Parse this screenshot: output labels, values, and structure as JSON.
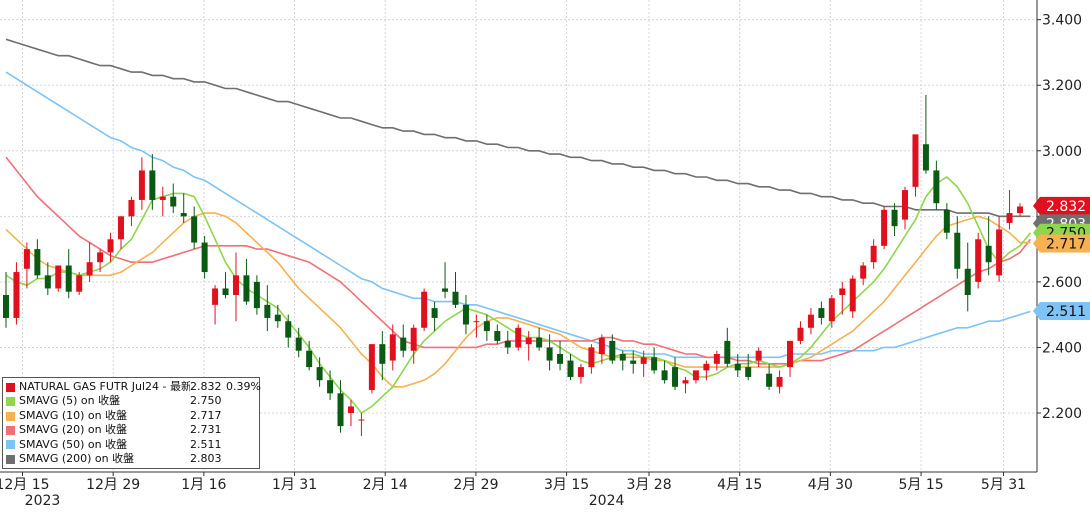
{
  "chart_data": {
    "type": "candlestick",
    "instrument": "NATURAL GAS FUTR Jul24",
    "y_axis": {
      "ticks": [
        "2.200",
        "2.400",
        "2.600",
        "2.800",
        "3.000",
        "3.200",
        "3.400"
      ],
      "ylim": [
        2.02,
        3.46
      ]
    },
    "x_axis": {
      "ticks": [
        "12月 15",
        "12月 29",
        "1月 16",
        "1月 31",
        "2月 14",
        "2月 29",
        "3月 15",
        "3月 28",
        "4月 15",
        "4月 30",
        "5月 15",
        "5月 31"
      ],
      "years": [
        "2023",
        "2024"
      ]
    },
    "candles": [
      [
        2.56,
        2.63,
        2.46,
        2.49
      ],
      [
        2.49,
        2.66,
        2.47,
        2.63
      ],
      [
        2.64,
        2.72,
        2.58,
        2.7
      ],
      [
        2.7,
        2.73,
        2.61,
        2.62
      ],
      [
        2.62,
        2.66,
        2.56,
        2.58
      ],
      [
        2.58,
        2.65,
        2.57,
        2.65
      ],
      [
        2.65,
        2.7,
        2.55,
        2.57
      ],
      [
        2.57,
        2.63,
        2.56,
        2.62
      ],
      [
        2.62,
        2.72,
        2.6,
        2.66
      ],
      [
        2.66,
        2.7,
        2.63,
        2.69
      ],
      [
        2.69,
        2.75,
        2.66,
        2.73
      ],
      [
        2.73,
        2.8,
        2.7,
        2.8
      ],
      [
        2.8,
        2.86,
        2.77,
        2.85
      ],
      [
        2.85,
        2.98,
        2.82,
        2.94
      ],
      [
        2.94,
        2.99,
        2.82,
        2.85
      ],
      [
        2.85,
        2.89,
        2.8,
        2.86
      ],
      [
        2.86,
        2.9,
        2.81,
        2.83
      ],
      [
        2.81,
        2.87,
        2.78,
        2.8
      ],
      [
        2.8,
        2.83,
        2.7,
        2.72
      ],
      [
        2.72,
        2.74,
        2.61,
        2.63
      ],
      [
        2.53,
        2.59,
        2.47,
        2.58
      ],
      [
        2.58,
        2.63,
        2.55,
        2.56
      ],
      [
        2.56,
        2.69,
        2.48,
        2.62
      ],
      [
        2.62,
        2.67,
        2.53,
        2.54
      ],
      [
        2.6,
        2.62,
        2.5,
        2.52
      ],
      [
        2.53,
        2.59,
        2.45,
        2.49
      ],
      [
        2.5,
        2.53,
        2.46,
        2.48
      ],
      [
        2.48,
        2.5,
        2.4,
        2.43
      ],
      [
        2.43,
        2.46,
        2.37,
        2.39
      ],
      [
        2.39,
        2.42,
        2.33,
        2.34
      ],
      [
        2.34,
        2.37,
        2.28,
        2.3
      ],
      [
        2.3,
        2.33,
        2.24,
        2.26
      ],
      [
        2.26,
        2.3,
        2.14,
        2.16
      ],
      [
        2.2,
        2.24,
        2.16,
        2.22
      ],
      [
        2.18,
        2.2,
        2.13,
        2.18
      ],
      [
        2.27,
        2.41,
        2.26,
        2.41
      ],
      [
        2.41,
        2.45,
        2.3,
        2.35
      ],
      [
        2.36,
        2.47,
        2.33,
        2.44
      ],
      [
        2.43,
        2.47,
        2.37,
        2.39
      ],
      [
        2.39,
        2.47,
        2.35,
        2.46
      ],
      [
        2.46,
        2.58,
        2.45,
        2.57
      ],
      [
        2.52,
        2.54,
        2.45,
        2.49
      ],
      [
        2.58,
        2.66,
        2.55,
        2.57
      ],
      [
        2.57,
        2.63,
        2.52,
        2.53
      ],
      [
        2.53,
        2.56,
        2.44,
        2.47
      ],
      [
        2.48,
        2.5,
        2.43,
        2.48
      ],
      [
        2.48,
        2.5,
        2.42,
        2.45
      ],
      [
        2.45,
        2.47,
        2.41,
        2.42
      ],
      [
        2.42,
        2.45,
        2.38,
        2.4
      ],
      [
        2.4,
        2.47,
        2.39,
        2.46
      ],
      [
        2.41,
        2.45,
        2.36,
        2.43
      ],
      [
        2.43,
        2.46,
        2.39,
        2.4
      ],
      [
        2.4,
        2.44,
        2.33,
        2.36
      ],
      [
        2.38,
        2.42,
        2.33,
        2.35
      ],
      [
        2.36,
        2.38,
        2.3,
        2.31
      ],
      [
        2.31,
        2.35,
        2.29,
        2.34
      ],
      [
        2.34,
        2.41,
        2.32,
        2.4
      ],
      [
        2.38,
        2.44,
        2.35,
        2.43
      ],
      [
        2.42,
        2.44,
        2.35,
        2.36
      ],
      [
        2.38,
        2.39,
        2.33,
        2.36
      ],
      [
        2.36,
        2.39,
        2.32,
        2.35
      ],
      [
        2.35,
        2.39,
        2.31,
        2.37
      ],
      [
        2.37,
        2.4,
        2.32,
        2.33
      ],
      [
        2.33,
        2.36,
        2.29,
        2.3
      ],
      [
        2.34,
        2.37,
        2.27,
        2.28
      ],
      [
        2.29,
        2.31,
        2.26,
        2.3
      ],
      [
        2.3,
        2.33,
        2.29,
        2.33
      ],
      [
        2.33,
        2.36,
        2.3,
        2.35
      ],
      [
        2.35,
        2.39,
        2.33,
        2.38
      ],
      [
        2.42,
        2.46,
        2.34,
        2.35
      ],
      [
        2.35,
        2.38,
        2.31,
        2.33
      ],
      [
        2.34,
        2.38,
        2.3,
        2.31
      ],
      [
        2.36,
        2.4,
        2.34,
        2.39
      ],
      [
        2.32,
        2.35,
        2.27,
        2.28
      ],
      [
        2.28,
        2.33,
        2.26,
        2.31
      ],
      [
        2.34,
        2.42,
        2.31,
        2.42
      ],
      [
        2.42,
        2.48,
        2.41,
        2.46
      ],
      [
        2.46,
        2.52,
        2.44,
        2.5
      ],
      [
        2.52,
        2.54,
        2.47,
        2.49
      ],
      [
        2.48,
        2.56,
        2.46,
        2.55
      ],
      [
        2.56,
        2.6,
        2.5,
        2.58
      ],
      [
        2.51,
        2.62,
        2.49,
        2.61
      ],
      [
        2.61,
        2.66,
        2.59,
        2.65
      ],
      [
        2.66,
        2.73,
        2.64,
        2.71
      ],
      [
        2.71,
        2.83,
        2.7,
        2.82
      ],
      [
        2.82,
        2.84,
        2.74,
        2.77
      ],
      [
        2.79,
        2.89,
        2.76,
        2.88
      ],
      [
        2.89,
        3.05,
        2.86,
        3.05
      ],
      [
        3.02,
        3.17,
        2.93,
        2.94
      ],
      [
        2.94,
        2.97,
        2.82,
        2.84
      ],
      [
        2.82,
        2.84,
        2.73,
        2.75
      ],
      [
        2.75,
        2.8,
        2.61,
        2.64
      ],
      [
        2.64,
        2.72,
        2.51,
        2.56
      ],
      [
        2.6,
        2.75,
        2.58,
        2.73
      ],
      [
        2.71,
        2.8,
        2.62,
        2.66
      ],
      [
        2.62,
        2.8,
        2.6,
        2.76
      ],
      [
        2.78,
        2.88,
        2.76,
        2.81
      ],
      [
        2.81,
        2.84,
        2.8,
        2.83
      ]
    ],
    "series": [
      {
        "name": "SMAVG (5)",
        "color": "#8ed64c",
        "values": [
          2.62,
          2.6,
          2.59,
          2.61,
          2.61,
          2.63,
          2.63,
          2.62,
          2.63,
          2.64,
          2.66,
          2.7,
          2.73,
          2.79,
          2.85,
          2.86,
          2.87,
          2.87,
          2.86,
          2.8,
          2.73,
          2.66,
          2.61,
          2.58,
          2.56,
          2.54,
          2.52,
          2.48,
          2.44,
          2.4,
          2.35,
          2.31,
          2.27,
          2.24,
          2.2,
          2.22,
          2.25,
          2.28,
          2.33,
          2.38,
          2.42,
          2.45,
          2.48,
          2.5,
          2.52,
          2.51,
          2.5,
          2.48,
          2.46,
          2.44,
          2.43,
          2.43,
          2.42,
          2.4,
          2.38,
          2.36,
          2.35,
          2.36,
          2.37,
          2.38,
          2.38,
          2.37,
          2.37,
          2.36,
          2.34,
          2.33,
          2.31,
          2.31,
          2.32,
          2.34,
          2.35,
          2.35,
          2.36,
          2.35,
          2.34,
          2.35,
          2.37,
          2.4,
          2.44,
          2.48,
          2.51,
          2.54,
          2.57,
          2.6,
          2.64,
          2.69,
          2.74,
          2.79,
          2.86,
          2.9,
          2.92,
          2.89,
          2.84,
          2.77,
          2.7,
          2.66,
          2.69,
          2.71,
          2.75
        ]
      },
      {
        "name": "SMAVG (10)",
        "color": "#f7b151",
        "values": [
          2.76,
          2.73,
          2.7,
          2.67,
          2.65,
          2.64,
          2.63,
          2.62,
          2.62,
          2.62,
          2.62,
          2.63,
          2.65,
          2.67,
          2.69,
          2.72,
          2.75,
          2.78,
          2.8,
          2.81,
          2.81,
          2.8,
          2.78,
          2.75,
          2.72,
          2.69,
          2.66,
          2.62,
          2.58,
          2.55,
          2.52,
          2.49,
          2.46,
          2.42,
          2.38,
          2.35,
          2.31,
          2.28,
          2.28,
          2.29,
          2.3,
          2.32,
          2.35,
          2.39,
          2.43,
          2.46,
          2.48,
          2.49,
          2.49,
          2.48,
          2.47,
          2.46,
          2.45,
          2.44,
          2.42,
          2.4,
          2.39,
          2.38,
          2.37,
          2.37,
          2.37,
          2.37,
          2.36,
          2.36,
          2.35,
          2.34,
          2.34,
          2.34,
          2.34,
          2.34,
          2.34,
          2.34,
          2.34,
          2.34,
          2.34,
          2.35,
          2.36,
          2.37,
          2.39,
          2.41,
          2.43,
          2.45,
          2.48,
          2.51,
          2.54,
          2.58,
          2.62,
          2.66,
          2.7,
          2.74,
          2.77,
          2.78,
          2.79,
          2.8,
          2.79,
          2.77,
          2.75,
          2.72,
          2.72
        ]
      },
      {
        "name": "SMAVG (20)",
        "color": "#f07079",
        "values": [
          2.98,
          2.94,
          2.9,
          2.86,
          2.83,
          2.8,
          2.77,
          2.74,
          2.72,
          2.7,
          2.68,
          2.67,
          2.66,
          2.66,
          2.66,
          2.67,
          2.68,
          2.69,
          2.7,
          2.71,
          2.71,
          2.71,
          2.71,
          2.71,
          2.7,
          2.7,
          2.69,
          2.68,
          2.67,
          2.66,
          2.64,
          2.62,
          2.6,
          2.57,
          2.54,
          2.51,
          2.48,
          2.45,
          2.42,
          2.41,
          2.4,
          2.4,
          2.4,
          2.4,
          2.4,
          2.4,
          2.41,
          2.41,
          2.42,
          2.42,
          2.42,
          2.42,
          2.42,
          2.42,
          2.42,
          2.42,
          2.42,
          2.43,
          2.43,
          2.42,
          2.42,
          2.41,
          2.41,
          2.4,
          2.39,
          2.38,
          2.38,
          2.37,
          2.37,
          2.37,
          2.36,
          2.36,
          2.35,
          2.35,
          2.35,
          2.35,
          2.36,
          2.36,
          2.36,
          2.37,
          2.38,
          2.39,
          2.41,
          2.43,
          2.45,
          2.47,
          2.49,
          2.51,
          2.53,
          2.55,
          2.57,
          2.59,
          2.61,
          2.63,
          2.64,
          2.66,
          2.67,
          2.69,
          2.73
        ]
      },
      {
        "name": "SMAVG (50)",
        "color": "#7ec3f5",
        "values": [
          3.24,
          3.22,
          3.2,
          3.18,
          3.16,
          3.14,
          3.12,
          3.1,
          3.08,
          3.06,
          3.04,
          3.03,
          3.01,
          3.0,
          2.98,
          2.97,
          2.95,
          2.94,
          2.92,
          2.91,
          2.89,
          2.87,
          2.85,
          2.83,
          2.81,
          2.79,
          2.77,
          2.75,
          2.73,
          2.71,
          2.69,
          2.67,
          2.65,
          2.63,
          2.61,
          2.6,
          2.58,
          2.57,
          2.56,
          2.55,
          2.55,
          2.54,
          2.54,
          2.54,
          2.53,
          2.53,
          2.52,
          2.51,
          2.5,
          2.49,
          2.48,
          2.47,
          2.46,
          2.45,
          2.44,
          2.43,
          2.42,
          2.41,
          2.4,
          2.39,
          2.39,
          2.38,
          2.38,
          2.38,
          2.37,
          2.37,
          2.37,
          2.37,
          2.37,
          2.37,
          2.37,
          2.37,
          2.37,
          2.37,
          2.37,
          2.38,
          2.38,
          2.38,
          2.38,
          2.39,
          2.39,
          2.39,
          2.39,
          2.39,
          2.4,
          2.4,
          2.41,
          2.42,
          2.43,
          2.44,
          2.45,
          2.46,
          2.46,
          2.47,
          2.48,
          2.48,
          2.49,
          2.5,
          2.51
        ]
      },
      {
        "name": "SMAVG (200)",
        "color": "#6f6f6f",
        "values": [
          3.34,
          3.33,
          3.32,
          3.31,
          3.3,
          3.29,
          3.29,
          3.28,
          3.27,
          3.26,
          3.26,
          3.25,
          3.24,
          3.24,
          3.23,
          3.23,
          3.22,
          3.22,
          3.21,
          3.21,
          3.2,
          3.19,
          3.19,
          3.18,
          3.17,
          3.16,
          3.15,
          3.15,
          3.14,
          3.13,
          3.12,
          3.11,
          3.1,
          3.1,
          3.09,
          3.08,
          3.07,
          3.07,
          3.06,
          3.06,
          3.05,
          3.05,
          3.04,
          3.04,
          3.03,
          3.03,
          3.02,
          3.02,
          3.01,
          3.01,
          3.0,
          3.0,
          2.99,
          2.99,
          2.98,
          2.98,
          2.97,
          2.97,
          2.96,
          2.96,
          2.95,
          2.95,
          2.94,
          2.94,
          2.93,
          2.93,
          2.92,
          2.92,
          2.91,
          2.91,
          2.9,
          2.9,
          2.89,
          2.89,
          2.88,
          2.88,
          2.87,
          2.87,
          2.86,
          2.86,
          2.85,
          2.85,
          2.84,
          2.84,
          2.83,
          2.83,
          2.83,
          2.82,
          2.82,
          2.82,
          2.82,
          2.81,
          2.81,
          2.81,
          2.81,
          2.8,
          2.8,
          2.8,
          2.8
        ]
      }
    ],
    "up_color": "#e0101e",
    "down_color": "#0a5a14",
    "price_tags": [
      {
        "label": "2.832",
        "value": 2.832,
        "bg": "#e0101e",
        "fg": "#ffffff"
      },
      {
        "label": "2.803",
        "value": 2.803,
        "bg": "#6f6f6f",
        "fg": "#ffffff"
      },
      {
        "label": "2.750",
        "value": 2.75,
        "bg": "#8ed64c",
        "fg": "#111111"
      },
      {
        "label": "2.717",
        "value": 2.717,
        "bg": "#f7b151",
        "fg": "#111111"
      },
      {
        "label": "2.511",
        "value": 2.511,
        "bg": "#7ec3f5",
        "fg": "#111111"
      }
    ]
  },
  "legend": {
    "rows": [
      {
        "name": "NATURAL GAS FUTR Jul24 - 最新價",
        "value": "2.832",
        "change": "0.39%",
        "color": "#e0101e"
      },
      {
        "name": "SMAVG (5)  on 收盤",
        "value": "2.750",
        "change": "",
        "color": "#8ed64c"
      },
      {
        "name": "SMAVG (10)  on 收盤",
        "value": "2.717",
        "change": "",
        "color": "#f7b151"
      },
      {
        "name": "SMAVG (20)  on 收盤",
        "value": "2.731",
        "change": "",
        "color": "#f07079"
      },
      {
        "name": "SMAVG (50)  on 收盤",
        "value": "2.511",
        "change": "",
        "color": "#7ec3f5"
      },
      {
        "name": "SMAVG (200)  on 收盤",
        "value": "2.803",
        "change": "",
        "color": "#6f6f6f"
      }
    ]
  }
}
